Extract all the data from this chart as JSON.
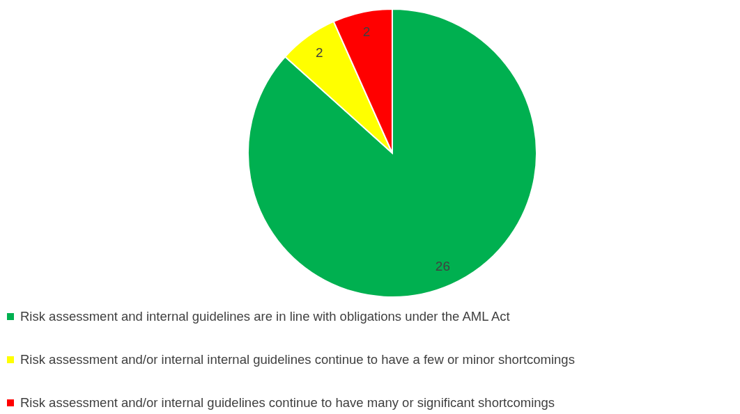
{
  "chart_data": {
    "type": "pie",
    "categories": [
      "Risk assessment and internal guidelines are in line with obligations under the AML Act",
      "Risk assessment and/or internal internal guidelines continue to have a few or minor shortcomings",
      "Risk assessment and/or internal guidelines continue to have many or significant shortcomings"
    ],
    "values": [
      26,
      2,
      2
    ],
    "colors": [
      "#00b050",
      "#ffff00",
      "#ff0000"
    ],
    "data_labels": true,
    "legend": "bottom"
  }
}
